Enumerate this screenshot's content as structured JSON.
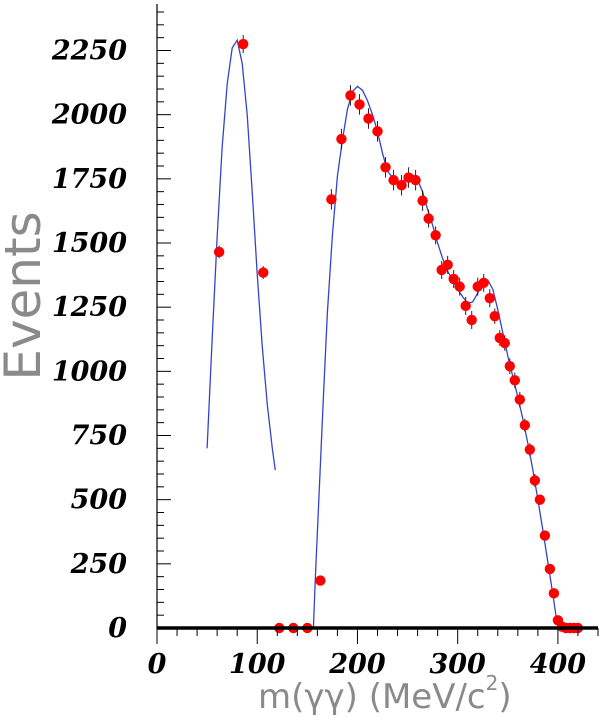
{
  "chart_data": {
    "type": "scatter",
    "xlabel": "m(γγ)  (MeV/c²)",
    "xlabel_main": "m(γγ)  (MeV/c",
    "xlabel_sup": "2",
    "xlabel_close": ")",
    "ylabel": "Events",
    "xlim": [
      0,
      440
    ],
    "ylim": [
      0,
      2400
    ],
    "x_ticks": [
      0,
      100,
      200,
      300,
      400
    ],
    "x_tick_labels": [
      "0",
      "100",
      "200",
      "300",
      "400"
    ],
    "y_ticks": [
      0,
      250,
      500,
      750,
      1000,
      1250,
      1500,
      1750,
      2000,
      2250
    ],
    "y_tick_labels": [
      "0",
      "250",
      "500",
      "750",
      "1000",
      "1250",
      "1500",
      "1750",
      "2000",
      "2250"
    ],
    "grid": false,
    "colors": {
      "points": "#ff0000",
      "fit": "#3344cc",
      "axis": "#000000",
      "axis_title": "#8a8a8a"
    },
    "series": [
      {
        "kind": "points",
        "points": [
          {
            "x": 62,
            "y": 1465,
            "err": 25
          },
          {
            "x": 86,
            "y": 2275,
            "err": 35
          },
          {
            "x": 106,
            "y": 1385,
            "err": 25
          },
          {
            "x": 122,
            "y": 0
          },
          {
            "x": 136,
            "y": 0
          },
          {
            "x": 150,
            "y": 0
          },
          {
            "x": 163,
            "y": 185,
            "err": 15
          },
          {
            "x": 174,
            "y": 1670,
            "err": 40
          },
          {
            "x": 184,
            "y": 1905,
            "err": 40
          },
          {
            "x": 193,
            "y": 2075,
            "err": 40
          },
          {
            "x": 202,
            "y": 2040,
            "err": 40
          },
          {
            "x": 211,
            "y": 1985,
            "err": 40
          },
          {
            "x": 220,
            "y": 1935,
            "err": 40
          },
          {
            "x": 228,
            "y": 1795,
            "err": 40
          },
          {
            "x": 236,
            "y": 1745,
            "err": 40
          },
          {
            "x": 244,
            "y": 1725,
            "err": 40
          },
          {
            "x": 251,
            "y": 1755,
            "err": 40
          },
          {
            "x": 258,
            "y": 1745,
            "err": 40
          },
          {
            "x": 265,
            "y": 1665,
            "err": 40
          },
          {
            "x": 271,
            "y": 1595,
            "err": 35
          },
          {
            "x": 278,
            "y": 1530,
            "err": 35
          },
          {
            "x": 284,
            "y": 1395,
            "err": 35
          },
          {
            "x": 290,
            "y": 1415,
            "err": 35
          },
          {
            "x": 296,
            "y": 1360,
            "err": 35
          },
          {
            "x": 302,
            "y": 1330,
            "err": 35
          },
          {
            "x": 308,
            "y": 1255,
            "err": 35
          },
          {
            "x": 314,
            "y": 1200,
            "err": 35
          },
          {
            "x": 320,
            "y": 1330,
            "err": 35
          },
          {
            "x": 326,
            "y": 1345,
            "err": 35
          },
          {
            "x": 332,
            "y": 1285,
            "err": 35
          },
          {
            "x": 337,
            "y": 1215,
            "err": 30
          },
          {
            "x": 342,
            "y": 1130,
            "err": 30
          },
          {
            "x": 347,
            "y": 1110,
            "err": 30
          },
          {
            "x": 352,
            "y": 1020,
            "err": 30
          },
          {
            "x": 357,
            "y": 965,
            "err": 30
          },
          {
            "x": 362,
            "y": 890,
            "err": 30
          },
          {
            "x": 367,
            "y": 790,
            "err": 25
          },
          {
            "x": 372,
            "y": 695,
            "err": 25
          },
          {
            "x": 377,
            "y": 575,
            "err": 25
          },
          {
            "x": 382,
            "y": 500,
            "err": 20
          },
          {
            "x": 387,
            "y": 360,
            "err": 20
          },
          {
            "x": 392,
            "y": 230,
            "err": 15
          },
          {
            "x": 396,
            "y": 135,
            "err": 12
          },
          {
            "x": 400,
            "y": 30,
            "err": 6
          },
          {
            "x": 404,
            "y": 5
          },
          {
            "x": 408,
            "y": 0
          },
          {
            "x": 412,
            "y": 0
          },
          {
            "x": 416,
            "y": 0
          },
          {
            "x": 420,
            "y": 0
          }
        ]
      },
      {
        "kind": "fit",
        "points": [
          [
            50,
            700
          ],
          [
            55,
            1120
          ],
          [
            60,
            1520
          ],
          [
            65,
            1870
          ],
          [
            70,
            2120
          ],
          [
            75,
            2260
          ],
          [
            80,
            2290
          ],
          [
            85,
            2200
          ],
          [
            90,
            2000
          ],
          [
            95,
            1700
          ],
          [
            100,
            1380
          ],
          [
            105,
            1100
          ],
          [
            110,
            870
          ],
          [
            115,
            700
          ],
          [
            118,
            615
          ]
        ]
      },
      {
        "kind": "fit",
        "points": [
          [
            156,
            0
          ],
          [
            158,
            200
          ],
          [
            162,
            550
          ],
          [
            166,
            900
          ],
          [
            170,
            1230
          ],
          [
            175,
            1530
          ],
          [
            180,
            1760
          ],
          [
            185,
            1900
          ],
          [
            190,
            2020
          ],
          [
            195,
            2090
          ],
          [
            200,
            2110
          ],
          [
            205,
            2095
          ],
          [
            210,
            2055
          ],
          [
            215,
            2000
          ],
          [
            220,
            1935
          ],
          [
            225,
            1850
          ],
          [
            230,
            1780
          ],
          [
            235,
            1755
          ],
          [
            240,
            1740
          ],
          [
            245,
            1740
          ],
          [
            250,
            1755
          ],
          [
            255,
            1765
          ],
          [
            260,
            1745
          ],
          [
            265,
            1700
          ],
          [
            270,
            1630
          ],
          [
            275,
            1570
          ],
          [
            280,
            1500
          ],
          [
            285,
            1440
          ],
          [
            290,
            1390
          ],
          [
            295,
            1355
          ],
          [
            300,
            1320
          ],
          [
            305,
            1290
          ],
          [
            310,
            1265
          ],
          [
            315,
            1270
          ],
          [
            320,
            1305
          ],
          [
            325,
            1345
          ],
          [
            330,
            1355
          ],
          [
            335,
            1320
          ],
          [
            340,
            1240
          ],
          [
            345,
            1150
          ],
          [
            350,
            1060
          ],
          [
            355,
            980
          ],
          [
            360,
            900
          ],
          [
            365,
            815
          ],
          [
            370,
            720
          ],
          [
            375,
            615
          ],
          [
            380,
            500
          ],
          [
            385,
            380
          ],
          [
            390,
            255
          ],
          [
            395,
            130
          ],
          [
            398,
            50
          ],
          [
            400,
            10
          ],
          [
            402,
            0
          ]
        ]
      }
    ]
  }
}
